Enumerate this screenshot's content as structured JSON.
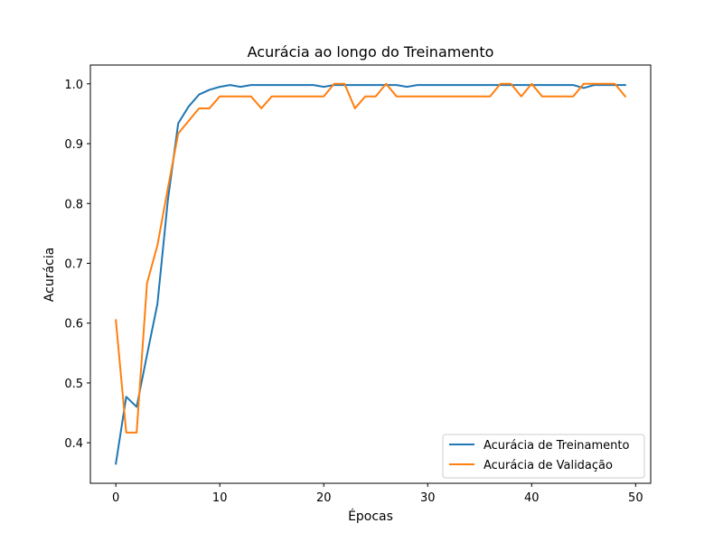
{
  "chart_data": {
    "type": "line",
    "title": "Acurácia ao longo do Treinamento",
    "xlabel": "Épocas",
    "ylabel": "Acurácia",
    "xlim": [
      -2.45,
      51.45
    ],
    "ylim": [
      0.3323,
      1.0314
    ],
    "xticks": [
      0,
      10,
      20,
      30,
      40,
      50
    ],
    "yticks": [
      0.4,
      0.5,
      0.6,
      0.7,
      0.8,
      0.9,
      1.0
    ],
    "ytick_labels": [
      "0.4",
      "0.5",
      "0.6",
      "0.7",
      "0.8",
      "0.9",
      "1.0"
    ],
    "legend_position": "lower-right",
    "grid": false,
    "x": [
      0,
      1,
      2,
      3,
      4,
      5,
      6,
      7,
      8,
      9,
      10,
      11,
      12,
      13,
      14,
      15,
      16,
      17,
      18,
      19,
      20,
      21,
      22,
      23,
      24,
      25,
      26,
      27,
      28,
      29,
      30,
      31,
      32,
      33,
      34,
      35,
      36,
      37,
      38,
      39,
      40,
      41,
      42,
      43,
      44,
      45,
      46,
      47,
      48,
      49
    ],
    "series": [
      {
        "name": "Acurácia de Treinamento",
        "color": "#1f77b4",
        "values": [
          0.365,
          0.477,
          0.46,
          0.547,
          0.632,
          0.805,
          0.934,
          0.962,
          0.982,
          0.99,
          0.995,
          0.998,
          0.995,
          0.998,
          0.998,
          0.998,
          0.998,
          0.998,
          0.998,
          0.998,
          0.995,
          0.998,
          0.998,
          0.998,
          0.998,
          0.998,
          0.998,
          0.998,
          0.995,
          0.998,
          0.998,
          0.998,
          0.998,
          0.998,
          0.998,
          0.998,
          0.998,
          0.998,
          0.998,
          0.998,
          0.998,
          0.998,
          0.998,
          0.998,
          0.998,
          0.993,
          0.998,
          0.998,
          0.998,
          0.998
        ]
      },
      {
        "name": "Acurácia de Validação",
        "color": "#ff7f0e",
        "values": [
          0.605,
          0.417,
          0.417,
          0.667,
          0.73,
          0.825,
          0.917,
          0.938,
          0.959,
          0.959,
          0.979,
          0.979,
          0.979,
          0.979,
          0.959,
          0.979,
          0.979,
          0.979,
          0.979,
          0.979,
          0.979,
          1.0,
          1.0,
          0.959,
          0.979,
          0.979,
          1.0,
          0.979,
          0.979,
          0.979,
          0.979,
          0.979,
          0.979,
          0.979,
          0.979,
          0.979,
          0.979,
          1.0,
          1.0,
          0.979,
          1.0,
          0.979,
          0.979,
          0.979,
          0.979,
          1.0,
          1.0,
          1.0,
          1.0,
          0.979
        ]
      }
    ]
  }
}
